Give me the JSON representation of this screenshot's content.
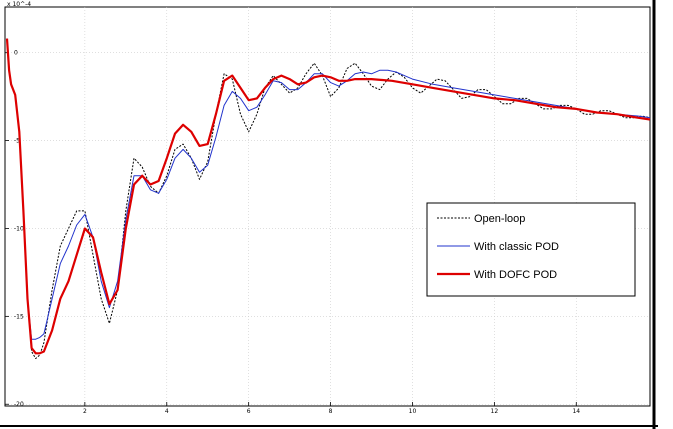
{
  "chart_data": {
    "type": "line",
    "title": "",
    "xlabel": "",
    "ylabel": "",
    "y_multiplier_label": "x 10^-4",
    "xlim": [
      0.05,
      15.8
    ],
    "ylim": [
      -20.1,
      2.6
    ],
    "grid": true,
    "legend_position": "lower-right",
    "x_ticks": [
      2,
      4,
      6,
      8,
      10,
      12,
      14
    ],
    "x_tick_labels": [
      "2",
      "4",
      "6",
      "8",
      "10",
      "12",
      "14"
    ],
    "y_ticks": [
      0,
      -5,
      -10,
      -15,
      -20
    ],
    "y_tick_labels": [
      "0",
      "-5",
      "-10",
      "-15",
      "-20"
    ],
    "series": [
      {
        "name": "Open-loop",
        "color": "#000000",
        "dash": "dashed",
        "x": [
          0.1,
          0.15,
          0.2,
          0.3,
          0.4,
          0.5,
          0.6,
          0.7,
          0.8,
          0.9,
          1.0,
          1.2,
          1.4,
          1.6,
          1.8,
          2.0,
          2.2,
          2.4,
          2.6,
          2.8,
          3.0,
          3.2,
          3.4,
          3.6,
          3.8,
          4.0,
          4.2,
          4.4,
          4.6,
          4.8,
          5.0,
          5.2,
          5.4,
          5.6,
          5.8,
          6.0,
          6.2,
          6.4,
          6.6,
          6.8,
          7.0,
          7.2,
          7.4,
          7.6,
          7.8,
          8.0,
          8.2,
          8.4,
          8.6,
          8.8,
          9.0,
          9.2,
          9.4,
          9.6,
          9.8,
          10.0,
          10.2,
          10.4,
          10.6,
          10.8,
          11.0,
          11.2,
          11.4,
          11.6,
          11.8,
          12.0,
          12.2,
          12.4,
          12.6,
          12.8,
          13.0,
          13.2,
          13.4,
          13.6,
          13.8,
          14.0,
          14.2,
          14.4,
          14.6,
          14.8,
          15.0,
          15.2,
          15.4,
          15.6,
          15.8
        ],
        "values": [
          0.8,
          -1.0,
          -1.8,
          -2.4,
          -4.5,
          -9.0,
          -14.0,
          -17.0,
          -17.4,
          -17.2,
          -16.5,
          -13.5,
          -11.0,
          -10.0,
          -9.0,
          -9.0,
          -11.5,
          -14.0,
          -15.4,
          -13.5,
          -9.0,
          -6.0,
          -6.5,
          -7.6,
          -8.0,
          -7.0,
          -5.5,
          -5.2,
          -6.0,
          -7.2,
          -6.2,
          -3.5,
          -1.2,
          -1.5,
          -3.5,
          -4.5,
          -3.5,
          -2.0,
          -1.3,
          -1.8,
          -2.3,
          -2.0,
          -1.2,
          -0.6,
          -1.3,
          -2.5,
          -2.0,
          -0.9,
          -0.6,
          -1.2,
          -1.9,
          -2.1,
          -1.5,
          -1.1,
          -1.4,
          -2.0,
          -2.3,
          -1.9,
          -1.5,
          -1.6,
          -2.1,
          -2.6,
          -2.5,
          -2.1,
          -2.1,
          -2.5,
          -2.9,
          -2.9,
          -2.6,
          -2.6,
          -2.9,
          -3.2,
          -3.2,
          -3.0,
          -3.0,
          -3.2,
          -3.5,
          -3.5,
          -3.3,
          -3.3,
          -3.5,
          -3.7,
          -3.7,
          -3.6,
          -3.7
        ]
      },
      {
        "name": "With classic POD",
        "color": "#2233cc",
        "dash": "solid",
        "x": [
          0.1,
          0.15,
          0.2,
          0.3,
          0.4,
          0.5,
          0.6,
          0.7,
          0.8,
          0.9,
          1.0,
          1.2,
          1.4,
          1.6,
          1.8,
          2.0,
          2.2,
          2.4,
          2.6,
          2.8,
          3.0,
          3.2,
          3.4,
          3.6,
          3.8,
          4.0,
          4.2,
          4.4,
          4.6,
          4.8,
          5.0,
          5.2,
          5.4,
          5.6,
          5.8,
          6.0,
          6.2,
          6.4,
          6.6,
          6.8,
          7.0,
          7.2,
          7.4,
          7.6,
          7.8,
          8.0,
          8.2,
          8.4,
          8.6,
          8.8,
          9.0,
          9.2,
          9.4,
          9.6,
          9.8,
          10.0,
          10.5,
          11.0,
          11.5,
          12.0,
          12.5,
          13.0,
          13.5,
          14.0,
          14.5,
          15.0,
          15.5,
          15.8
        ],
        "values": [
          0.8,
          -1.0,
          -1.8,
          -2.4,
          -4.5,
          -9.0,
          -14.0,
          -16.3,
          -16.3,
          -16.2,
          -16.0,
          -14.0,
          -12.0,
          -11.0,
          -9.8,
          -9.2,
          -10.5,
          -13.0,
          -14.5,
          -13.0,
          -9.5,
          -7.0,
          -7.0,
          -7.8,
          -8.0,
          -7.2,
          -6.0,
          -5.5,
          -6.0,
          -6.8,
          -6.4,
          -4.8,
          -3.0,
          -2.2,
          -2.6,
          -3.3,
          -3.1,
          -2.4,
          -1.6,
          -1.7,
          -2.1,
          -2.1,
          -1.7,
          -1.2,
          -1.2,
          -1.7,
          -1.9,
          -1.6,
          -1.2,
          -1.1,
          -1.2,
          -1.0,
          -1.0,
          -1.1,
          -1.3,
          -1.5,
          -1.8,
          -2.0,
          -2.2,
          -2.4,
          -2.6,
          -2.8,
          -3.0,
          -3.2,
          -3.4,
          -3.5,
          -3.6,
          -3.7
        ]
      },
      {
        "name": "With DOFC POD",
        "color": "#dd0000",
        "dash": "solid",
        "x": [
          0.1,
          0.15,
          0.2,
          0.3,
          0.4,
          0.5,
          0.6,
          0.7,
          0.8,
          0.9,
          1.0,
          1.2,
          1.4,
          1.6,
          1.8,
          2.0,
          2.2,
          2.4,
          2.6,
          2.8,
          3.0,
          3.2,
          3.4,
          3.6,
          3.8,
          4.0,
          4.2,
          4.4,
          4.6,
          4.8,
          5.0,
          5.2,
          5.4,
          5.6,
          5.8,
          6.0,
          6.2,
          6.4,
          6.6,
          6.8,
          7.0,
          7.2,
          7.4,
          7.6,
          7.8,
          8.0,
          8.2,
          8.4,
          8.6,
          8.8,
          9.0,
          9.5,
          10.0,
          10.5,
          11.0,
          11.5,
          12.0,
          12.5,
          13.0,
          13.5,
          14.0,
          14.5,
          15.0,
          15.5,
          15.8
        ],
        "values": [
          0.8,
          -1.0,
          -1.8,
          -2.4,
          -4.5,
          -9.0,
          -14.0,
          -16.8,
          -17.1,
          -17.1,
          -17.0,
          -15.8,
          -14.0,
          -13.0,
          -11.5,
          -10.0,
          -10.5,
          -12.5,
          -14.3,
          -13.5,
          -10.0,
          -7.5,
          -7.0,
          -7.5,
          -7.3,
          -6.0,
          -4.6,
          -4.1,
          -4.5,
          -5.3,
          -5.2,
          -3.5,
          -1.6,
          -1.3,
          -2.0,
          -2.7,
          -2.6,
          -2.0,
          -1.5,
          -1.3,
          -1.5,
          -1.8,
          -1.7,
          -1.4,
          -1.3,
          -1.4,
          -1.6,
          -1.6,
          -1.5,
          -1.5,
          -1.5,
          -1.6,
          -1.8,
          -2.0,
          -2.2,
          -2.4,
          -2.6,
          -2.7,
          -2.9,
          -3.1,
          -3.2,
          -3.4,
          -3.5,
          -3.7,
          -3.8
        ]
      }
    ]
  }
}
